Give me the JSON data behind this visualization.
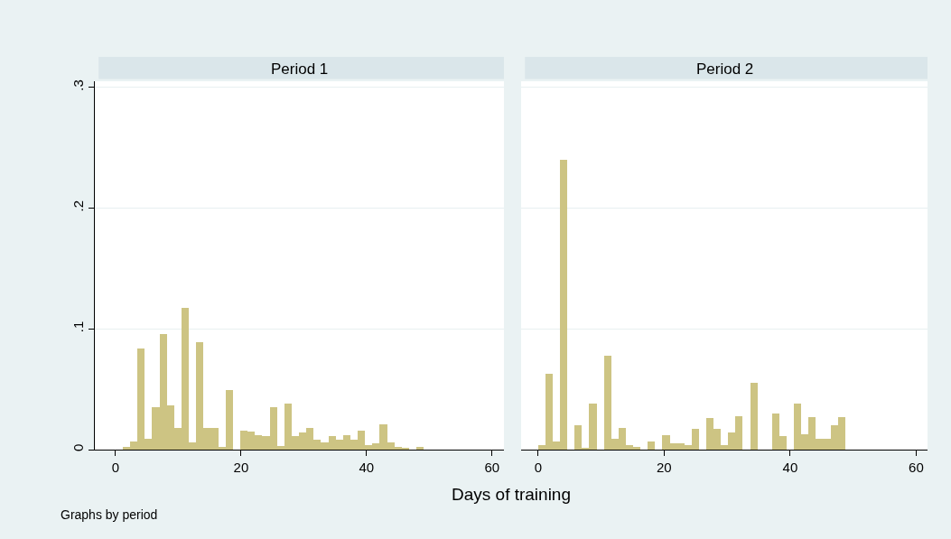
{
  "chart_data": [
    {
      "type": "histogram",
      "title": "Period 1",
      "xlabel": "Days of training",
      "annotations": [
        "Graphs by period"
      ],
      "bins": [
        1.15,
        2.32,
        3.49,
        4.66,
        5.83,
        7.0,
        8.17,
        9.34,
        10.51,
        11.68,
        12.85,
        14.02,
        15.19,
        16.36,
        17.53,
        18.7,
        19.87,
        21.04,
        22.21,
        23.38,
        24.55,
        25.72,
        26.89,
        28.06,
        29.23,
        30.4,
        31.57,
        32.74,
        33.91,
        35.08,
        36.25,
        37.42,
        38.59,
        39.76,
        40.93,
        42.1,
        43.27,
        44.44,
        45.61,
        46.78,
        47.95,
        49.12
      ],
      "values": [
        0.002,
        0.007,
        0.084,
        0.009,
        0.035,
        0.096,
        0.037,
        0.018,
        0.117,
        0.006,
        0.089,
        0.018,
        0.018,
        0.002,
        0.049,
        0,
        0.016,
        0.015,
        0.012,
        0.011,
        0.035,
        0.003,
        0.038,
        0.011,
        0.014,
        0.018,
        0.008,
        0.006,
        0.011,
        0.008,
        0.012,
        0.008,
        0.016,
        0.004,
        0.005,
        0.021,
        0.006,
        0.002,
        0.001,
        0,
        0.002
      ],
      "color": "#cdc483",
      "xlim": [
        -3.3,
        61.9
      ],
      "xticks": [
        0,
        20,
        40,
        60
      ],
      "ylim": [
        0,
        0.305
      ],
      "yticks": [
        0,
        {
          "value": 0.1,
          "label": ".1"
        },
        {
          "value": 0.2,
          "label": ".2"
        },
        {
          "value": 0.3,
          "label": ".3"
        }
      ],
      "grid": "y"
    },
    {
      "type": "histogram",
      "title": "Period 2",
      "bins": [
        0,
        1.16,
        2.32,
        3.48,
        4.64,
        5.8,
        6.96,
        8.12,
        9.28,
        10.44,
        11.6,
        12.76,
        13.92,
        15.08,
        16.24,
        17.4,
        18.56,
        19.72,
        20.88,
        22.04,
        23.2,
        24.36,
        25.52,
        26.68,
        27.84,
        29.0,
        30.16,
        31.32,
        32.48,
        33.64,
        34.8,
        35.96,
        37.12,
        38.28,
        39.44,
        40.6,
        41.76,
        42.92,
        44.08,
        45.24,
        46.4,
        47.56,
        48.72
      ],
      "values": [
        0.004,
        0.063,
        0.007,
        0.24,
        0,
        0.02,
        0.001,
        0.038,
        0,
        0.078,
        0.009,
        0.018,
        0.004,
        0.002,
        0,
        0.007,
        0,
        0.012,
        0.005,
        0.005,
        0.004,
        0.017,
        0,
        0.026,
        0.017,
        0.004,
        0.014,
        0.028,
        0,
        0.055,
        0,
        0,
        0.03,
        0.011,
        0,
        0.038,
        0.013,
        0.027,
        0.009,
        0.009,
        0.02,
        0.027
      ],
      "color": "#cdc483",
      "xlim": [
        -2.7,
        61.8
      ],
      "xticks": [
        0,
        20,
        40,
        60
      ],
      "ylim": [
        0,
        0.305
      ],
      "yticks": [
        0,
        0.1,
        0.2,
        0.3
      ],
      "grid": "y",
      "tick_labels": "x"
    }
  ]
}
